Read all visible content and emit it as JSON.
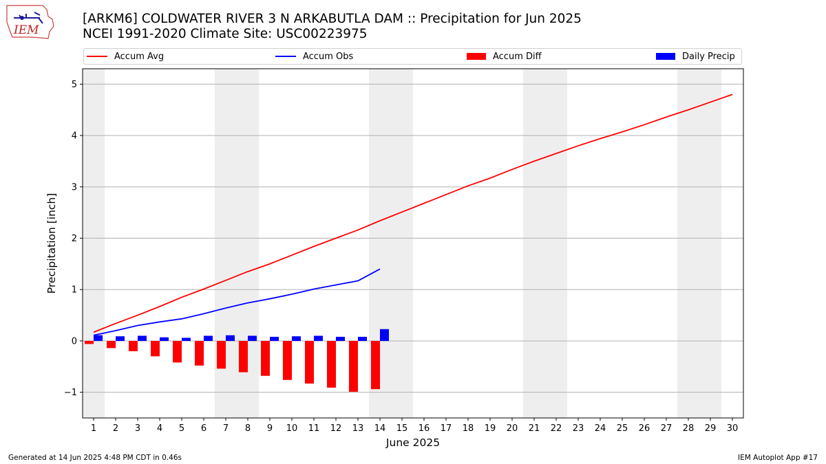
{
  "header": {
    "title_line1": "[ARKM6] COLDWATER RIVER 3 N ARKABUTLA DAM :: Precipitation for Jun 2025",
    "title_line2": "NCEI 1991-2020 Climate Site: USC00223975",
    "logo_text": "IEM"
  },
  "footer": {
    "generated": "Generated at 14 Jun 2025 4:48 PM CDT in 0.46s",
    "app": "IEM Autoplot App #17"
  },
  "colors": {
    "accum_avg": "#ff0000",
    "accum_obs": "#0000ff",
    "accum_diff": "#ff0000",
    "daily_precip": "#0000ff",
    "weekend_shade": "#eeeeee",
    "grid": "#b0b0b0"
  },
  "chart_data": {
    "type": "bar",
    "xlabel": "June 2025",
    "ylabel": "Precipitation [inch]",
    "xlim": [
      0.5,
      30.5
    ],
    "ylim": [
      -1.5,
      5.3
    ],
    "yticks": [
      -1,
      0,
      1,
      2,
      3,
      4,
      5
    ],
    "x": [
      1,
      2,
      3,
      4,
      5,
      6,
      7,
      8,
      9,
      10,
      11,
      12,
      13,
      14,
      15,
      16,
      17,
      18,
      19,
      20,
      21,
      22,
      23,
      24,
      25,
      26,
      27,
      28,
      29,
      30
    ],
    "grid": "horizontal",
    "legend_position": "top",
    "weekend_shading": [
      [
        0.5,
        1.5
      ],
      [
        6.5,
        8.5
      ],
      [
        13.5,
        15.5
      ],
      [
        20.5,
        22.5
      ],
      [
        27.5,
        29.5
      ]
    ],
    "series": [
      {
        "name": "Accum Avg",
        "kind": "line",
        "x": [
          1,
          2,
          3,
          4,
          5,
          6,
          7,
          8,
          9,
          10,
          11,
          12,
          13,
          14,
          15,
          16,
          17,
          18,
          19,
          20,
          21,
          22,
          23,
          24,
          25,
          26,
          27,
          28,
          29,
          30
        ],
        "values": [
          0.17,
          0.34,
          0.5,
          0.67,
          0.85,
          1.01,
          1.18,
          1.35,
          1.5,
          1.67,
          1.84,
          2.0,
          2.16,
          2.34,
          2.51,
          2.68,
          2.85,
          3.02,
          3.17,
          3.34,
          3.5,
          3.65,
          3.8,
          3.94,
          4.07,
          4.21,
          4.36,
          4.5,
          4.65,
          4.8
        ]
      },
      {
        "name": "Accum Obs",
        "kind": "line",
        "x": [
          1,
          2,
          3,
          4,
          5,
          6,
          7,
          8,
          9,
          10,
          11,
          12,
          13,
          14
        ],
        "values": [
          0.11,
          0.2,
          0.3,
          0.37,
          0.43,
          0.53,
          0.64,
          0.74,
          0.82,
          0.91,
          1.01,
          1.09,
          1.17,
          1.4
        ]
      },
      {
        "name": "Accum Diff",
        "kind": "bar",
        "x": [
          1,
          2,
          3,
          4,
          5,
          6,
          7,
          8,
          9,
          10,
          11,
          12,
          13,
          14
        ],
        "values": [
          -0.06,
          -0.14,
          -0.2,
          -0.3,
          -0.42,
          -0.48,
          -0.54,
          -0.61,
          -0.68,
          -0.76,
          -0.83,
          -0.91,
          -0.99,
          -0.94
        ]
      },
      {
        "name": "Daily Precip",
        "kind": "bar",
        "x": [
          1,
          2,
          3,
          4,
          5,
          6,
          7,
          8,
          9,
          10,
          11,
          12,
          13,
          14
        ],
        "values": [
          0.11,
          0.09,
          0.1,
          0.07,
          0.06,
          0.1,
          0.11,
          0.1,
          0.08,
          0.09,
          0.1,
          0.08,
          0.08,
          0.23
        ]
      }
    ]
  }
}
